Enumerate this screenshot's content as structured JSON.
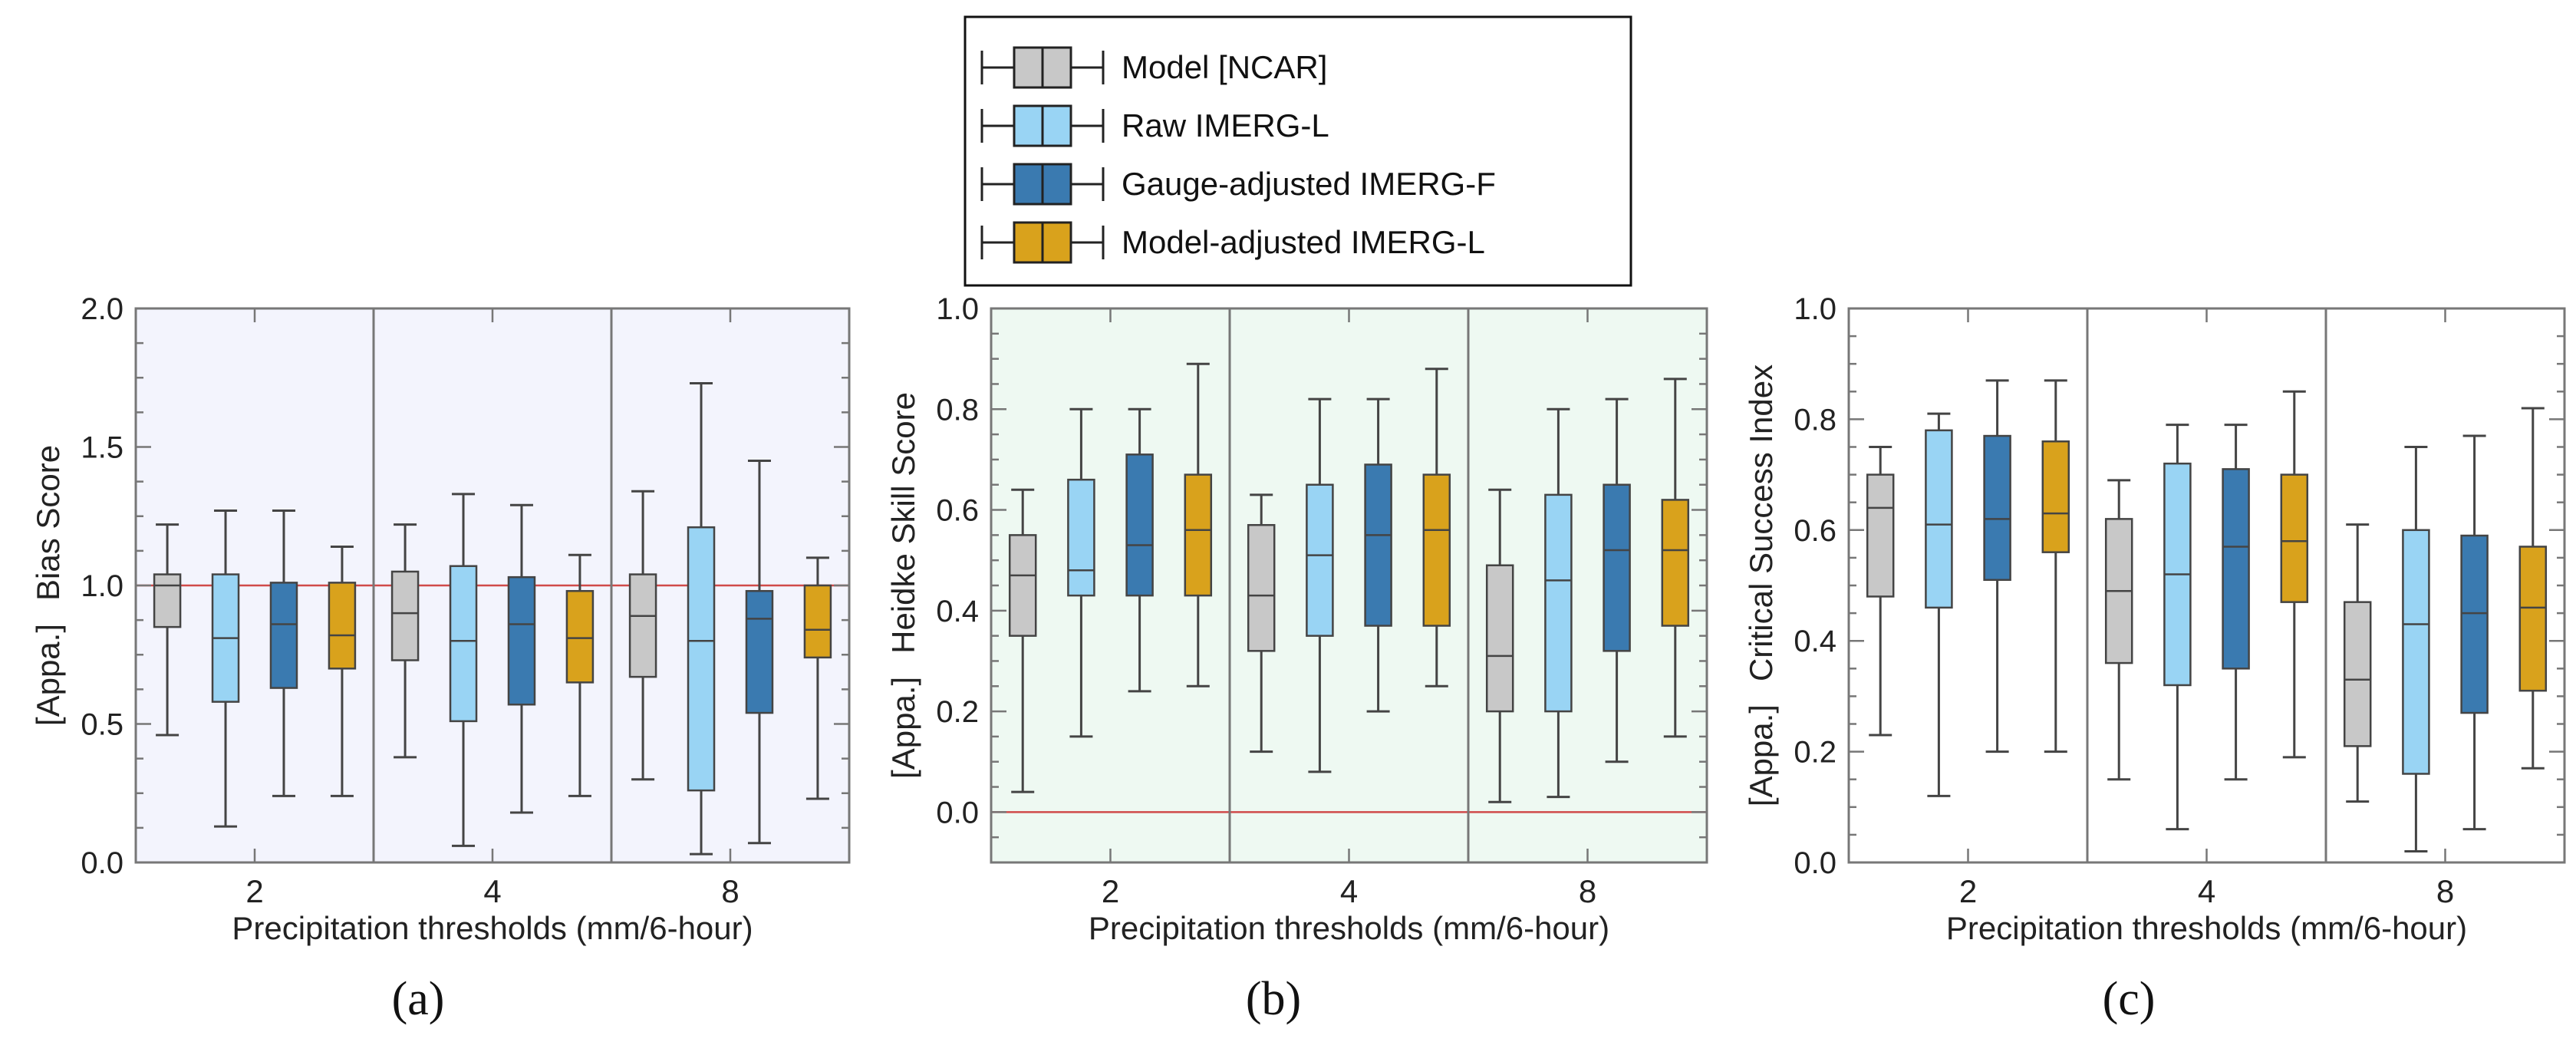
{
  "legend": {
    "entries": [
      {
        "label": "Model [NCAR]",
        "color": "#c8c8c8"
      },
      {
        "label": "Raw IMERG-L",
        "color": "#99d4f4"
      },
      {
        "label": "Gauge-adjusted IMERG-F",
        "color": "#3a7ab0"
      },
      {
        "label": "Model-adjusted IMERG-L",
        "color": "#d9a21c"
      }
    ]
  },
  "colors": {
    "frame": "#777777",
    "whisker": "#444444",
    "reference_line": "#d04a4a",
    "bg_a": "#f3f4fd",
    "bg_b": "#eef9f2",
    "bg_c": "#ffffff"
  },
  "chart_data": [
    {
      "type": "boxplot",
      "panel_label": "(a)",
      "ylabel_prefix": "[Appa.]",
      "ylabel": "Bias Score",
      "xlabel": "Precipitation thresholds (mm/6-hour)",
      "categories": [
        "2",
        "4",
        "8"
      ],
      "ylim": [
        0.0,
        2.0
      ],
      "yticks": [
        "0.0",
        "0.5",
        "1.0",
        "1.5",
        "2.0"
      ],
      "reference_line": 1.0,
      "background": "bg_a",
      "series": [
        {
          "name": "Model [NCAR]",
          "boxes": [
            {
              "min": 0.46,
              "q1": 0.85,
              "median": 1.0,
              "q3": 1.04,
              "max": 1.22
            },
            {
              "min": 0.38,
              "q1": 0.73,
              "median": 0.9,
              "q3": 1.05,
              "max": 1.22
            },
            {
              "min": 0.3,
              "q1": 0.67,
              "median": 0.89,
              "q3": 1.04,
              "max": 1.34
            }
          ]
        },
        {
          "name": "Raw IMERG-L",
          "boxes": [
            {
              "min": 0.13,
              "q1": 0.58,
              "median": 0.81,
              "q3": 1.04,
              "max": 1.27
            },
            {
              "min": 0.06,
              "q1": 0.51,
              "median": 0.8,
              "q3": 1.07,
              "max": 1.33
            },
            {
              "min": 0.03,
              "q1": 0.26,
              "median": 0.8,
              "q3": 1.21,
              "max": 1.73
            }
          ]
        },
        {
          "name": "Gauge-adjusted IMERG-F",
          "boxes": [
            {
              "min": 0.24,
              "q1": 0.63,
              "median": 0.86,
              "q3": 1.01,
              "max": 1.27
            },
            {
              "min": 0.18,
              "q1": 0.57,
              "median": 0.86,
              "q3": 1.03,
              "max": 1.29
            },
            {
              "min": 0.07,
              "q1": 0.54,
              "median": 0.88,
              "q3": 0.98,
              "max": 1.45
            }
          ]
        },
        {
          "name": "Model-adjusted IMERG-L",
          "boxes": [
            {
              "min": 0.24,
              "q1": 0.7,
              "median": 0.82,
              "q3": 1.01,
              "max": 1.14
            },
            {
              "min": 0.24,
              "q1": 0.65,
              "median": 0.81,
              "q3": 0.98,
              "max": 1.11
            },
            {
              "min": 0.23,
              "q1": 0.74,
              "median": 0.84,
              "q3": 1.0,
              "max": 1.1
            }
          ]
        }
      ]
    },
    {
      "type": "boxplot",
      "panel_label": "(b)",
      "ylabel_prefix": "[Appa.]",
      "ylabel": "Heidke Skill Score",
      "xlabel": "Precipitation thresholds (mm/6-hour)",
      "categories": [
        "2",
        "4",
        "8"
      ],
      "ylim": [
        -0.1,
        1.0
      ],
      "yticks": [
        "0.0",
        "0.2",
        "0.4",
        "0.6",
        "0.8",
        "1.0"
      ],
      "reference_line": 0.0,
      "background": "bg_b",
      "series": [
        {
          "name": "Model [NCAR]",
          "boxes": [
            {
              "min": 0.04,
              "q1": 0.35,
              "median": 0.47,
              "q3": 0.55,
              "max": 0.64
            },
            {
              "min": 0.12,
              "q1": 0.32,
              "median": 0.43,
              "q3": 0.57,
              "max": 0.63
            },
            {
              "min": 0.02,
              "q1": 0.2,
              "median": 0.31,
              "q3": 0.49,
              "max": 0.64
            }
          ]
        },
        {
          "name": "Raw IMERG-L",
          "boxes": [
            {
              "min": 0.15,
              "q1": 0.43,
              "median": 0.48,
              "q3": 0.66,
              "max": 0.8
            },
            {
              "min": 0.08,
              "q1": 0.35,
              "median": 0.51,
              "q3": 0.65,
              "max": 0.82
            },
            {
              "min": 0.03,
              "q1": 0.2,
              "median": 0.46,
              "q3": 0.63,
              "max": 0.8
            }
          ]
        },
        {
          "name": "Gauge-adjusted IMERG-F",
          "boxes": [
            {
              "min": 0.24,
              "q1": 0.43,
              "median": 0.53,
              "q3": 0.71,
              "max": 0.8
            },
            {
              "min": 0.2,
              "q1": 0.37,
              "median": 0.55,
              "q3": 0.69,
              "max": 0.82
            },
            {
              "min": 0.1,
              "q1": 0.32,
              "median": 0.52,
              "q3": 0.65,
              "max": 0.82
            }
          ]
        },
        {
          "name": "Model-adjusted IMERG-L",
          "boxes": [
            {
              "min": 0.25,
              "q1": 0.43,
              "median": 0.56,
              "q3": 0.67,
              "max": 0.89
            },
            {
              "min": 0.25,
              "q1": 0.37,
              "median": 0.56,
              "q3": 0.67,
              "max": 0.88
            },
            {
              "min": 0.15,
              "q1": 0.37,
              "median": 0.52,
              "q3": 0.62,
              "max": 0.86
            }
          ]
        }
      ]
    },
    {
      "type": "boxplot",
      "panel_label": "(c)",
      "ylabel_prefix": "[Appa.]",
      "ylabel": "Critical Success Index",
      "xlabel": "Precipitation thresholds (mm/6-hour)",
      "categories": [
        "2",
        "4",
        "8"
      ],
      "ylim": [
        0.0,
        1.0
      ],
      "yticks": [
        "0.0",
        "0.2",
        "0.4",
        "0.6",
        "0.8",
        "1.0"
      ],
      "reference_line": null,
      "background": "bg_c",
      "series": [
        {
          "name": "Model [NCAR]",
          "boxes": [
            {
              "min": 0.23,
              "q1": 0.48,
              "median": 0.64,
              "q3": 0.7,
              "max": 0.75
            },
            {
              "min": 0.15,
              "q1": 0.36,
              "median": 0.49,
              "q3": 0.62,
              "max": 0.69
            },
            {
              "min": 0.11,
              "q1": 0.21,
              "median": 0.33,
              "q3": 0.47,
              "max": 0.61
            }
          ]
        },
        {
          "name": "Raw IMERG-L",
          "boxes": [
            {
              "min": 0.12,
              "q1": 0.46,
              "median": 0.61,
              "q3": 0.78,
              "max": 0.81
            },
            {
              "min": 0.06,
              "q1": 0.32,
              "median": 0.52,
              "q3": 0.72,
              "max": 0.79
            },
            {
              "min": 0.02,
              "q1": 0.16,
              "median": 0.43,
              "q3": 0.6,
              "max": 0.75
            }
          ]
        },
        {
          "name": "Gauge-adjusted IMERG-F",
          "boxes": [
            {
              "min": 0.2,
              "q1": 0.51,
              "median": 0.62,
              "q3": 0.77,
              "max": 0.87
            },
            {
              "min": 0.15,
              "q1": 0.35,
              "median": 0.57,
              "q3": 0.71,
              "max": 0.79
            },
            {
              "min": 0.06,
              "q1": 0.27,
              "median": 0.45,
              "q3": 0.59,
              "max": 0.77
            }
          ]
        },
        {
          "name": "Model-adjusted IMERG-L",
          "boxes": [
            {
              "min": 0.2,
              "q1": 0.56,
              "median": 0.63,
              "q3": 0.76,
              "max": 0.87
            },
            {
              "min": 0.19,
              "q1": 0.47,
              "median": 0.58,
              "q3": 0.7,
              "max": 0.85
            },
            {
              "min": 0.17,
              "q1": 0.31,
              "median": 0.46,
              "q3": 0.57,
              "max": 0.82
            }
          ]
        }
      ]
    }
  ]
}
